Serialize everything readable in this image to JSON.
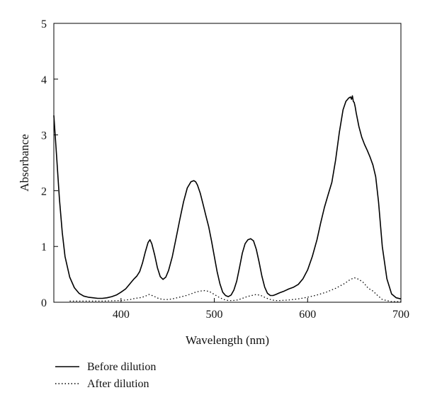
{
  "colors": {
    "line": "#000000"
  },
  "chart_data": {
    "type": "line",
    "title": "",
    "xlabel": "Wavelength (nm)",
    "ylabel": "Absorbance",
    "xlim": [
      328,
      700
    ],
    "ylim": [
      0,
      5
    ],
    "xticks": [
      400,
      500,
      600,
      700
    ],
    "yticks": [
      0,
      1,
      2,
      3,
      4,
      5
    ],
    "grid": false,
    "legend_position": "bottom-left (below plot)",
    "series": [
      {
        "name": "Before dilution",
        "style": "solid",
        "x": [
          328,
          331,
          334,
          337,
          340,
          345,
          350,
          355,
          360,
          365,
          370,
          375,
          380,
          385,
          390,
          395,
          400,
          405,
          408,
          411,
          414,
          417,
          420,
          423,
          426,
          429,
          431,
          433,
          436,
          439,
          442,
          445,
          448,
          451,
          455,
          459,
          463,
          467,
          471,
          475,
          478,
          480,
          482,
          485,
          488,
          491,
          494,
          497,
          500,
          503,
          506,
          509,
          512,
          515,
          518,
          521,
          524,
          527,
          530,
          533,
          536,
          539,
          542,
          545,
          548,
          551,
          554,
          557,
          560,
          563,
          566,
          570,
          575,
          580,
          585,
          590,
          595,
          600,
          605,
          610,
          614,
          618,
          622,
          626,
          630,
          634,
          638,
          641,
          644,
          646,
          647,
          648,
          649,
          650,
          651,
          652,
          655,
          658,
          661,
          664,
          667,
          670,
          673,
          676,
          680,
          685,
          690,
          695,
          700
        ],
        "y": [
          3.35,
          2.6,
          1.85,
          1.25,
          0.82,
          0.45,
          0.26,
          0.16,
          0.11,
          0.09,
          0.08,
          0.07,
          0.07,
          0.08,
          0.1,
          0.13,
          0.18,
          0.24,
          0.3,
          0.36,
          0.42,
          0.47,
          0.55,
          0.7,
          0.9,
          1.07,
          1.12,
          1.05,
          0.85,
          0.62,
          0.46,
          0.41,
          0.45,
          0.57,
          0.82,
          1.15,
          1.48,
          1.8,
          2.05,
          2.16,
          2.18,
          2.16,
          2.1,
          1.95,
          1.75,
          1.55,
          1.35,
          1.1,
          0.82,
          0.55,
          0.33,
          0.18,
          0.12,
          0.1,
          0.13,
          0.22,
          0.38,
          0.62,
          0.88,
          1.05,
          1.12,
          1.14,
          1.1,
          0.95,
          0.72,
          0.47,
          0.27,
          0.16,
          0.12,
          0.12,
          0.14,
          0.17,
          0.2,
          0.24,
          0.27,
          0.32,
          0.42,
          0.58,
          0.82,
          1.12,
          1.42,
          1.7,
          1.93,
          2.15,
          2.55,
          3.05,
          3.45,
          3.6,
          3.66,
          3.68,
          3.64,
          3.7,
          3.6,
          3.58,
          3.5,
          3.4,
          3.15,
          2.96,
          2.83,
          2.72,
          2.6,
          2.46,
          2.25,
          1.8,
          1.0,
          0.42,
          0.15,
          0.08,
          0.06
        ]
      },
      {
        "name": "After dilution",
        "style": "dotted",
        "x": [
          345,
          360,
          380,
          400,
          410,
          415,
          420,
          425,
          430,
          435,
          440,
          445,
          450,
          455,
          460,
          465,
          470,
          475,
          480,
          485,
          490,
          495,
          500,
          505,
          510,
          515,
          520,
          525,
          530,
          535,
          540,
          545,
          550,
          555,
          560,
          565,
          570,
          580,
          590,
          600,
          610,
          620,
          630,
          640,
          645,
          650,
          655,
          660,
          665,
          670,
          675,
          680,
          690,
          700
        ],
        "y": [
          0.02,
          0.02,
          0.02,
          0.03,
          0.05,
          0.07,
          0.08,
          0.1,
          0.14,
          0.11,
          0.07,
          0.05,
          0.05,
          0.06,
          0.08,
          0.1,
          0.12,
          0.15,
          0.18,
          0.2,
          0.21,
          0.19,
          0.14,
          0.09,
          0.05,
          0.03,
          0.03,
          0.04,
          0.07,
          0.1,
          0.12,
          0.14,
          0.12,
          0.08,
          0.05,
          0.03,
          0.03,
          0.04,
          0.06,
          0.09,
          0.13,
          0.18,
          0.25,
          0.34,
          0.4,
          0.44,
          0.41,
          0.35,
          0.25,
          0.2,
          0.12,
          0.05,
          0.01,
          0.01
        ]
      }
    ]
  }
}
